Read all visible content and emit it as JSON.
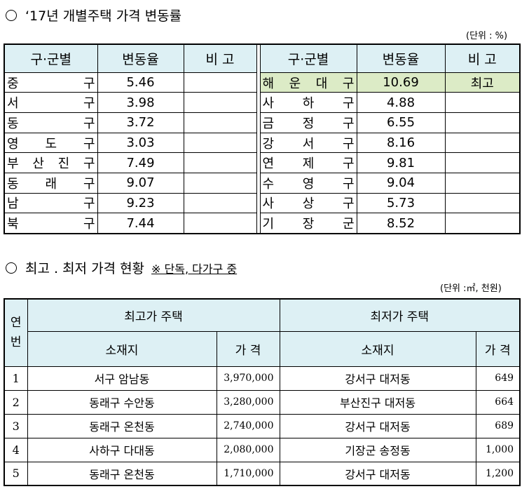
{
  "section1": {
    "title": "‘17년 개별주택 가격 변동률",
    "unit": "(단위 : %)",
    "headers": [
      "구·군별",
      "변동율",
      "비 고",
      "구·군별",
      "변동율",
      "비 고"
    ],
    "left_rows": [
      {
        "district": "중구",
        "rate": "5.46",
        "note": ""
      },
      {
        "district": "서구",
        "rate": "3.98",
        "note": ""
      },
      {
        "district": "동구",
        "rate": "3.72",
        "note": ""
      },
      {
        "district": "영도구",
        "rate": "3.03",
        "note": ""
      },
      {
        "district": "부산진구",
        "rate": "7.49",
        "note": ""
      },
      {
        "district": "동래구",
        "rate": "9.07",
        "note": ""
      },
      {
        "district": "남구",
        "rate": "9.23",
        "note": ""
      },
      {
        "district": "북구",
        "rate": "7.44",
        "note": ""
      }
    ],
    "right_rows": [
      {
        "district": "해운대구",
        "rate": "10.69",
        "note": "최고"
      },
      {
        "district": "사하구",
        "rate": "4.88",
        "note": ""
      },
      {
        "district": "금정구",
        "rate": "6.55",
        "note": ""
      },
      {
        "district": "강서구",
        "rate": "8.16",
        "note": ""
      },
      {
        "district": "연제구",
        "rate": "9.81",
        "note": ""
      },
      {
        "district": "수영구",
        "rate": "9.04",
        "note": ""
      },
      {
        "district": "사상구",
        "rate": "5.73",
        "note": ""
      },
      {
        "district": "기장군",
        "rate": "8.52",
        "note": ""
      }
    ],
    "highlight_color": "#dcebc6",
    "header_color": "#ddf0f4"
  },
  "section2": {
    "title": "최고 . 최저 가격 현황",
    "note": "※ 단독, 다가구 중",
    "unit": "(단위 :㎡, 천원)",
    "year_header": "연번",
    "max_header": "최고가 주택",
    "min_header": "최저가 주택",
    "location_label": "소재지",
    "price_label": "가 격",
    "rows": [
      {
        "no": "1",
        "max_loc": "서구 암남동",
        "max_price": "3,970,000",
        "min_loc": "강서구 대저동",
        "min_price": "649"
      },
      {
        "no": "2",
        "max_loc": "동래구 수안동",
        "max_price": "3,280,000",
        "min_loc": "부산진구 대저동",
        "min_price": "664"
      },
      {
        "no": "3",
        "max_loc": "동래구 온천동",
        "max_price": "2,740,000",
        "min_loc": "강서구 대저동",
        "min_price": "689"
      },
      {
        "no": "4",
        "max_loc": "사하구 다대동",
        "max_price": "2,080,000",
        "min_loc": "기장군 송정동",
        "min_price": "1,000"
      },
      {
        "no": "5",
        "max_loc": "동래구 온천동",
        "max_price": "1,710,000",
        "min_loc": "강서구 대저동",
        "min_price": "1,200"
      }
    ]
  }
}
